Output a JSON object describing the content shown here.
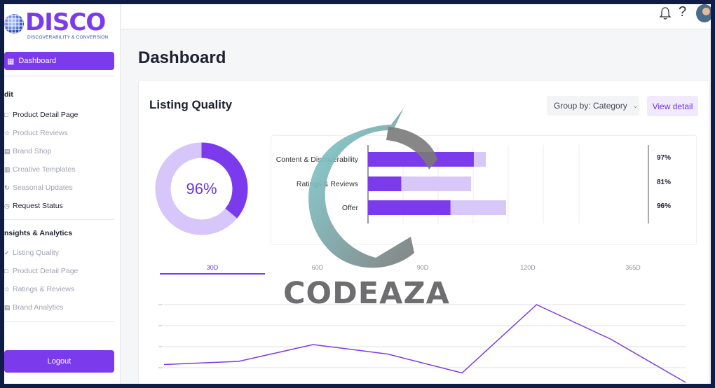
{
  "brand": {
    "name": "DISCO",
    "tagline": "DISCOVERABILITY & CONVERSION",
    "accent": "#7c3aed"
  },
  "sidebar": {
    "active_item": {
      "label": "Dashboard",
      "icon": "grid-icon"
    },
    "sections": [
      {
        "title": "dit",
        "items": [
          {
            "label": "Product Detail Page",
            "icon": "document-icon",
            "state": "dark"
          },
          {
            "label": "Product Reviews",
            "icon": "star-icon",
            "state": "muted"
          },
          {
            "label": "Brand Shop",
            "icon": "store-icon",
            "state": "muted"
          },
          {
            "label": "Creative Templates",
            "icon": "template-icon",
            "state": "muted"
          },
          {
            "label": "Seasonal Updates",
            "icon": "refresh-icon",
            "state": "muted"
          },
          {
            "label": "Request Status",
            "icon": "clock-icon",
            "state": "dark"
          }
        ]
      },
      {
        "title": "nsights & Analytics",
        "items": [
          {
            "label": "Listing Quality",
            "icon": "check-icon",
            "state": "muted"
          },
          {
            "label": "Product Detail Page",
            "icon": "document-icon",
            "state": "muted"
          },
          {
            "label": "Ratings & Reviews",
            "icon": "star-icon",
            "state": "muted"
          },
          {
            "label": "Brand Analytics",
            "icon": "chart-icon",
            "state": "muted"
          }
        ]
      }
    ],
    "logout_label": "Logout"
  },
  "topbar": {
    "help_glyph": "?"
  },
  "page": {
    "title": "Dashboard"
  },
  "card": {
    "title": "Listing Quality",
    "group_by_label": "Group by: Category",
    "view_detail_label": "View detail"
  },
  "donut": {
    "value": 0.96,
    "label": "96%",
    "fill_color": "#7c3aed",
    "track_color": "#d6c6f9"
  },
  "bars": {
    "type": "bar",
    "orientation": "horizontal",
    "categories": [
      "Content & Discoverability",
      "Ratings & Reviews",
      "Offer"
    ],
    "values": [
      97,
      81,
      96
    ],
    "value_labels": [
      "97%",
      "81%",
      "96%"
    ],
    "xlim": [
      0,
      100
    ]
  },
  "tabs": [
    {
      "label": "30D",
      "active": true
    },
    {
      "label": "60D",
      "active": false
    },
    {
      "label": "90D",
      "active": false
    },
    {
      "label": "120D",
      "active": false
    },
    {
      "label": "365D",
      "active": false
    }
  ],
  "chart_data": {
    "type": "line",
    "x": [
      0,
      1,
      2,
      3,
      4,
      5,
      6,
      7
    ],
    "series": [
      {
        "values": [
          3,
          6,
          22,
          13,
          -5,
          60,
          27,
          -14
        ]
      }
    ],
    "ylim": [
      -20,
      80
    ],
    "grid": true,
    "line_color": "#7c3aed"
  },
  "watermark": {
    "text": "CODEAZA"
  }
}
